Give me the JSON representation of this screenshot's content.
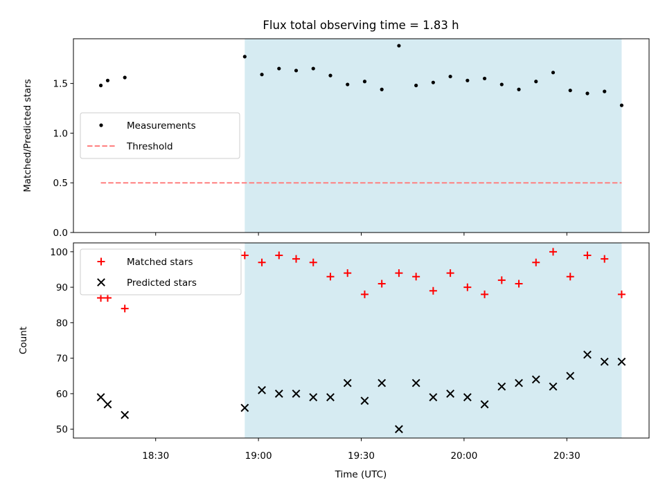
{
  "title": "Flux total observing time = 1.83 h",
  "xlabel": "Time (UTC)",
  "x_tick_labels": [
    "18:30",
    "19:00",
    "19:30",
    "20:00",
    "20:30"
  ],
  "colors": {
    "shade": "#add8e6",
    "threshold": "#ff7f7f",
    "matched": "#ff0000",
    "predicted": "#000000",
    "measurement": "#000000"
  },
  "chart_data": [
    {
      "type": "scatter",
      "ylabel": "Matched/Predicted stars",
      "ylim": [
        0,
        1.95
      ],
      "y_ticks": [
        0.0,
        0.5,
        1.0,
        1.5
      ],
      "y_tick_labels": [
        "0.0",
        "0.5",
        "1.0",
        "1.5"
      ],
      "shaded_interval": [
        "18:56",
        "20:46"
      ],
      "legend": {
        "position": "center-left",
        "entries": [
          "Measurements",
          "Threshold"
        ]
      },
      "series": [
        {
          "name": "Measurements",
          "x": [
            "18:14",
            "18:16",
            "18:21",
            "18:56",
            "19:01",
            "19:06",
            "19:11",
            "19:16",
            "19:21",
            "19:26",
            "19:31",
            "19:36",
            "19:41",
            "19:46",
            "19:51",
            "19:56",
            "20:01",
            "20:06",
            "20:11",
            "20:16",
            "20:21",
            "20:26",
            "20:31",
            "20:36",
            "20:41",
            "20:46"
          ],
          "y": [
            1.48,
            1.53,
            1.56,
            1.77,
            1.59,
            1.65,
            1.63,
            1.65,
            1.58,
            1.49,
            1.52,
            1.44,
            1.88,
            1.48,
            1.51,
            1.57,
            1.53,
            1.55,
            1.49,
            1.44,
            1.52,
            1.61,
            1.43,
            1.4,
            1.42,
            1.28
          ]
        },
        {
          "name": "Threshold",
          "x": [
            "18:14",
            "20:46"
          ],
          "y": [
            0.5,
            0.5
          ]
        }
      ]
    },
    {
      "type": "scatter",
      "ylabel": "Count",
      "ylim": [
        47.5,
        102.5
      ],
      "y_ticks": [
        50,
        60,
        70,
        80,
        90,
        100
      ],
      "y_tick_labels": [
        "50",
        "60",
        "70",
        "80",
        "90",
        "100"
      ],
      "shaded_interval": [
        "18:56",
        "20:46"
      ],
      "legend": {
        "position": "top-left",
        "entries": [
          "Matched stars",
          "Predicted stars"
        ]
      },
      "series": [
        {
          "name": "Matched stars",
          "x": [
            "18:14",
            "18:16",
            "18:21",
            "18:56",
            "19:01",
            "19:06",
            "19:11",
            "19:16",
            "19:21",
            "19:26",
            "19:31",
            "19:36",
            "19:41",
            "19:46",
            "19:51",
            "19:56",
            "20:01",
            "20:06",
            "20:11",
            "20:16",
            "20:21",
            "20:26",
            "20:31",
            "20:36",
            "20:41",
            "20:46"
          ],
          "y": [
            87,
            87,
            84,
            99,
            97,
            99,
            98,
            97,
            93,
            94,
            88,
            91,
            94,
            93,
            89,
            94,
            90,
            88,
            92,
            91,
            97,
            100,
            93,
            99,
            98,
            88
          ]
        },
        {
          "name": "Predicted stars",
          "x": [
            "18:14",
            "18:16",
            "18:21",
            "18:56",
            "19:01",
            "19:06",
            "19:11",
            "19:16",
            "19:21",
            "19:26",
            "19:31",
            "19:36",
            "19:41",
            "19:46",
            "19:51",
            "19:56",
            "20:01",
            "20:06",
            "20:11",
            "20:16",
            "20:21",
            "20:26",
            "20:31",
            "20:36",
            "20:41",
            "20:46"
          ],
          "y": [
            59,
            57,
            54,
            56,
            61,
            60,
            60,
            59,
            59,
            63,
            58,
            63,
            50,
            63,
            59,
            60,
            59,
            57,
            62,
            63,
            64,
            62,
            65,
            71,
            69,
            69
          ]
        }
      ]
    }
  ]
}
